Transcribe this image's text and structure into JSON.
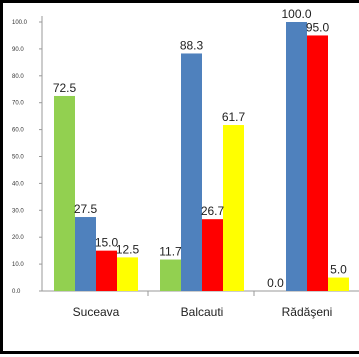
{
  "chart_data": {
    "type": "bar",
    "categories": [
      "Suceava",
      "Balcauti",
      "Rădăşeni"
    ],
    "series": [
      {
        "color": "#92D050",
        "values": [
          72.5,
          11.7,
          0.0
        ]
      },
      {
        "color": "#4F81BD",
        "values": [
          27.5,
          88.3,
          100.0
        ]
      },
      {
        "color": "#FF0000",
        "values": [
          15.0,
          26.7,
          95.0
        ]
      },
      {
        "color": "#FFFF00",
        "values": [
          12.5,
          61.7,
          5.0
        ]
      }
    ],
    "data_labels": [
      [
        "72.5",
        "27.5",
        "15.0",
        "12.5"
      ],
      [
        "11.7",
        "88.3",
        "26.7",
        "61.7"
      ],
      [
        "0.0",
        "100.0",
        "95.0",
        "5.0"
      ]
    ],
    "y_ticks": [
      "0.0",
      "10.0",
      "20.0",
      "30.0",
      "40.0",
      "50.0",
      "60.0",
      "70.0",
      "80.0",
      "90.0",
      "100.0"
    ],
    "ylim": [
      0,
      100
    ],
    "grid": false,
    "title": "",
    "xlabel": "",
    "ylabel": ""
  }
}
